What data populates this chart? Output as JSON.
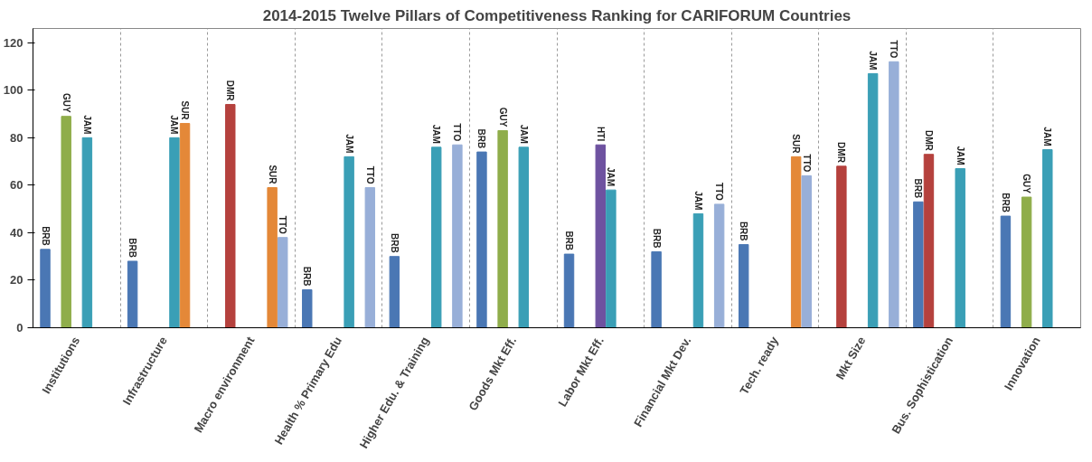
{
  "chart_data": {
    "type": "bar",
    "title": "2014-2015 Twelve Pillars of Competitiveness Ranking for CARIFORUM Countries",
    "categories": [
      "Institutions",
      "Infrastructure",
      "Macro environment",
      "Health % Primary Edu",
      "Higher Edu. & Training",
      "Goods Mkt Eff.",
      "Labor Mkt Eff.",
      "Financial Mkt Dev.",
      "Tech. ready",
      "Mkt Size",
      "Bus. Sophistication",
      "Innovation"
    ],
    "series": [
      {
        "name": "BRB",
        "color": "#4a77b4",
        "values": [
          33,
          28,
          null,
          16,
          30,
          74,
          31,
          32,
          35,
          null,
          53,
          47
        ]
      },
      {
        "name": "DMR",
        "color": "#b5413d",
        "values": [
          null,
          null,
          94,
          null,
          null,
          null,
          null,
          null,
          null,
          68,
          73,
          null
        ]
      },
      {
        "name": "GUY",
        "color": "#8fad4a",
        "values": [
          89,
          null,
          null,
          null,
          null,
          83,
          null,
          null,
          null,
          null,
          null,
          55
        ]
      },
      {
        "name": "HTI",
        "color": "#6e52a0",
        "values": [
          null,
          null,
          null,
          null,
          null,
          null,
          77,
          null,
          null,
          null,
          null,
          null
        ]
      },
      {
        "name": "JAM",
        "color": "#3a9fb6",
        "values": [
          80,
          80,
          null,
          72,
          76,
          76,
          58,
          48,
          null,
          107,
          67,
          75
        ]
      },
      {
        "name": "SUR",
        "color": "#e48838",
        "values": [
          null,
          86,
          59,
          null,
          null,
          null,
          null,
          null,
          72,
          null,
          null,
          null
        ]
      },
      {
        "name": "TTO",
        "color": "#98afd8",
        "values": [
          null,
          null,
          38,
          59,
          77,
          null,
          null,
          52,
          64,
          112,
          null,
          null
        ]
      }
    ],
    "ylim": [
      0,
      126
    ],
    "yticks": [
      0,
      20,
      40,
      60,
      80,
      100,
      120
    ],
    "grid": "x"
  }
}
